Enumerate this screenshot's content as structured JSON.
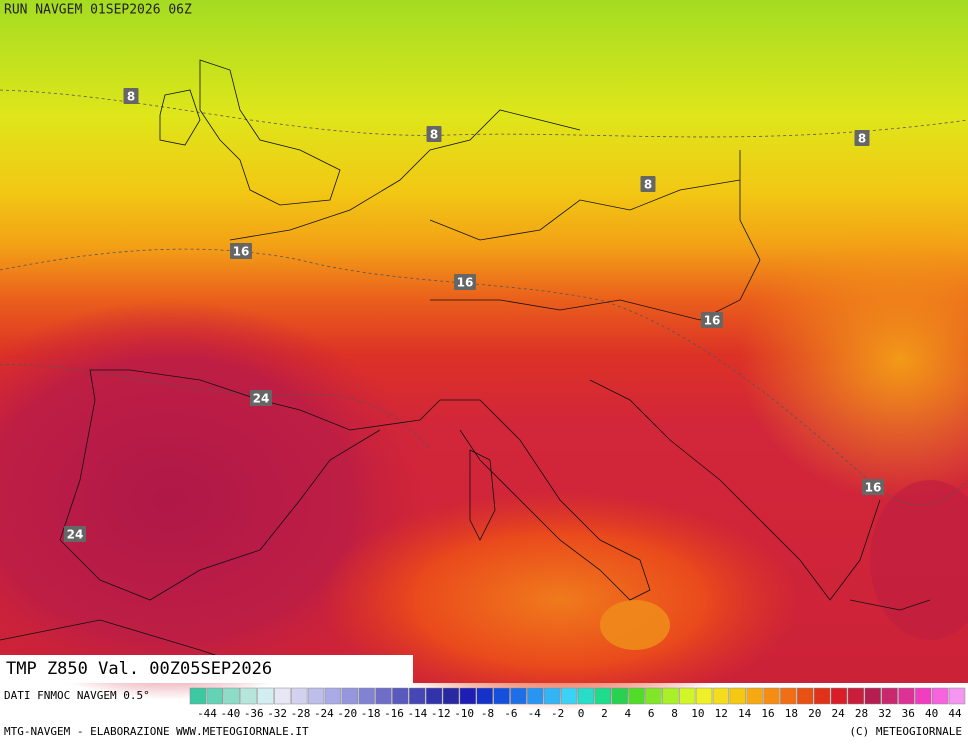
{
  "header": {
    "run": "RUN NAVGEM 01SEP2026 06Z"
  },
  "map": {
    "contour_labels": [
      "8",
      "8",
      "8",
      "8",
      "16",
      "16",
      "16",
      "16",
      "24",
      "24"
    ]
  },
  "title": "TMP Z850 Val. 00Z05SEP2026",
  "legend": {
    "source": "DATI FNMOC NAVGEM 0.5°",
    "labels": [
      "-44",
      "-40",
      "-36",
      "-32",
      "-28",
      "-24",
      "-20",
      "-18",
      "-16",
      "-14",
      "-12",
      "-10",
      "-8",
      "-6",
      "-4",
      "-2",
      "0",
      "2",
      "4",
      "6",
      "8",
      "10",
      "12",
      "14",
      "16",
      "18",
      "20",
      "24",
      "28",
      "32",
      "36",
      "40",
      "44"
    ],
    "colors": [
      "#3cc8a0",
      "#64d2b4",
      "#8cdcc8",
      "#b4e6dc",
      "#d2eef0",
      "#e6e6f5",
      "#d2d2f0",
      "#bebeeb",
      "#aaaae6",
      "#9696dc",
      "#8282d2",
      "#6e6ec8",
      "#5a5abe",
      "#4646b4",
      "#3232aa",
      "#2828a0",
      "#1e1eb4",
      "#1432c8",
      "#1450dc",
      "#1e6ee6",
      "#2896f0",
      "#32b4f5",
      "#3cd2f5",
      "#28dcc8",
      "#1edc8c",
      "#28d250",
      "#50dc28",
      "#82e628",
      "#aaf028",
      "#d2f528",
      "#f0f028",
      "#f5dc1e",
      "#f5c814",
      "#f5aa14",
      "#f58c14",
      "#f06e14",
      "#e85014",
      "#e03218",
      "#d81e28",
      "#c81e3c",
      "#b41e50",
      "#c8286e",
      "#dc3296",
      "#f03cbe",
      "#f564dc",
      "#f596f0"
    ]
  },
  "footer": {
    "left": "MTG-NAVGEM - ELABORAZIONE WWW.METEOGIORNALE.IT",
    "right": "(C) METEOGIORNALE"
  }
}
